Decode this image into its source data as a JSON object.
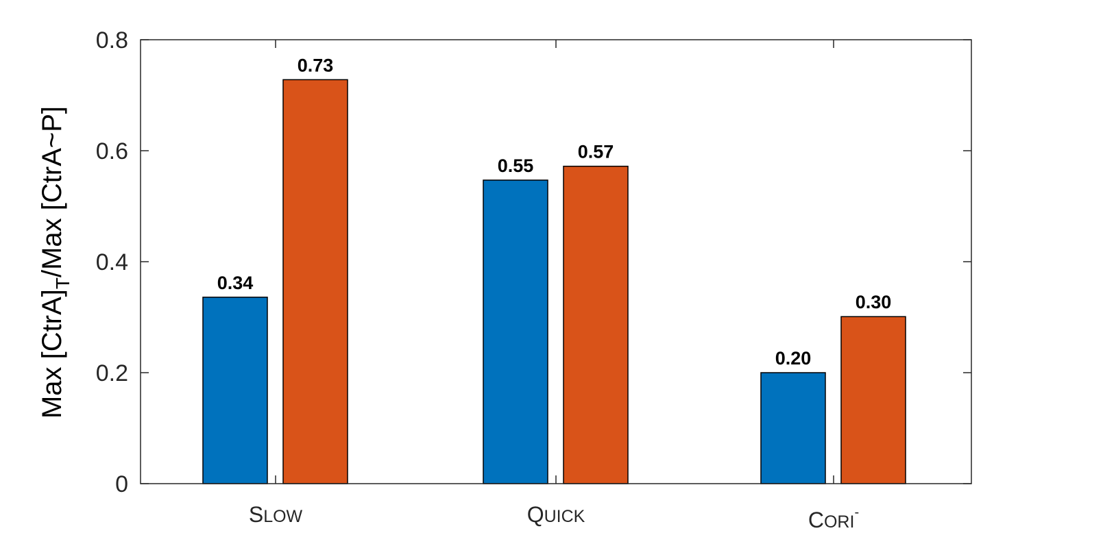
{
  "chart_data": {
    "type": "bar",
    "categories": [
      {
        "first": "S",
        "rest": "LOW",
        "superscript": ""
      },
      {
        "first": "Q",
        "rest": "UICK",
        "superscript": ""
      },
      {
        "first": "C",
        "rest": "ORI",
        "superscript": "-"
      }
    ],
    "series": [
      {
        "values": [
          0.34,
          0.55,
          0.2
        ],
        "color": "#0072BD"
      },
      {
        "values": [
          0.73,
          0.57,
          0.3
        ],
        "color": "#D95319"
      }
    ],
    "value_labels": [
      [
        "0.34",
        "0.55",
        "0.20"
      ],
      [
        "0.73",
        "0.57",
        "0.30"
      ]
    ],
    "bar_heights": [
      [
        0.336,
        0.547,
        0.2
      ],
      [
        0.728,
        0.572,
        0.301
      ]
    ],
    "ylabel": {
      "part1": "Max [CtrA]",
      "subscript": "T",
      "part2": "/Max [CtrA~P]"
    },
    "ylim": [
      0,
      0.8
    ],
    "yticks": [
      0,
      0.2,
      0.4,
      0.6,
      0.8
    ],
    "ytick_labels": [
      "0",
      "0.2",
      "0.4",
      "0.6",
      "0.8"
    ],
    "grid": false,
    "legend": "none"
  }
}
